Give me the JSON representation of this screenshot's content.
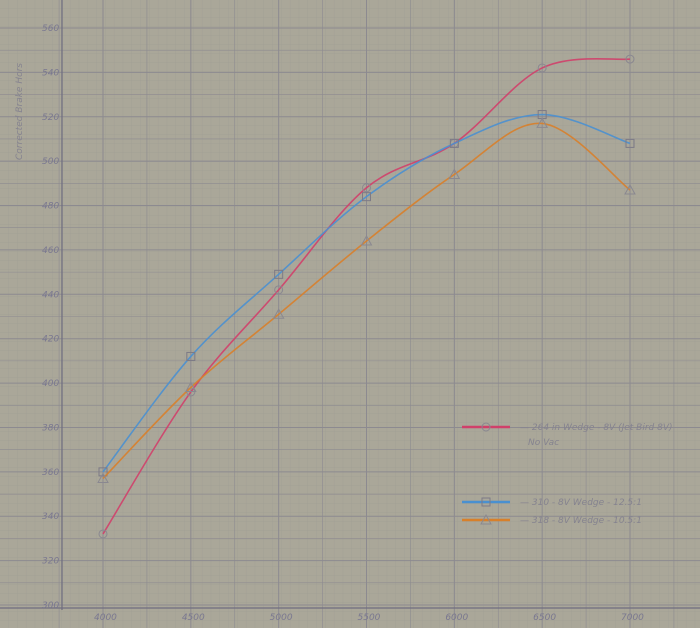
{
  "chart_data": {
    "type": "line",
    "title": "",
    "xlabel": "",
    "ylabel": "Corrected Brake Hors",
    "x": [
      4000,
      4500,
      5000,
      5500,
      6000,
      6500,
      7000
    ],
    "xlim": [
      4000,
      7000
    ],
    "ylim": [
      300,
      560
    ],
    "xticks": [
      "4000",
      "4500",
      "5000",
      "5500",
      "6000",
      "6500",
      "7000"
    ],
    "yticks": [
      "300",
      "320",
      "340",
      "360",
      "380",
      "400",
      "420",
      "440",
      "460",
      "480",
      "500",
      "520",
      "540",
      "560"
    ],
    "grid": true,
    "legend_position": "bottom-right",
    "series": [
      {
        "name": "264 in Wedge - 8V (Jet Bird 8V)",
        "note": "No Vac",
        "marker": "circle",
        "color": "#d0406a",
        "values": [
          332,
          396,
          442,
          488,
          508,
          542,
          546
        ]
      },
      {
        "name": "310 - 8V Wedge - 12.5:1",
        "marker": "square",
        "color": "#4a90d0",
        "values": [
          360,
          412,
          449,
          484,
          508,
          521,
          508
        ]
      },
      {
        "name": "318 - 8V Wedge - 10.5:1",
        "marker": "triangle",
        "color": "#d8802a",
        "values": [
          357,
          398,
          431,
          464,
          494,
          517,
          487
        ]
      }
    ]
  }
}
